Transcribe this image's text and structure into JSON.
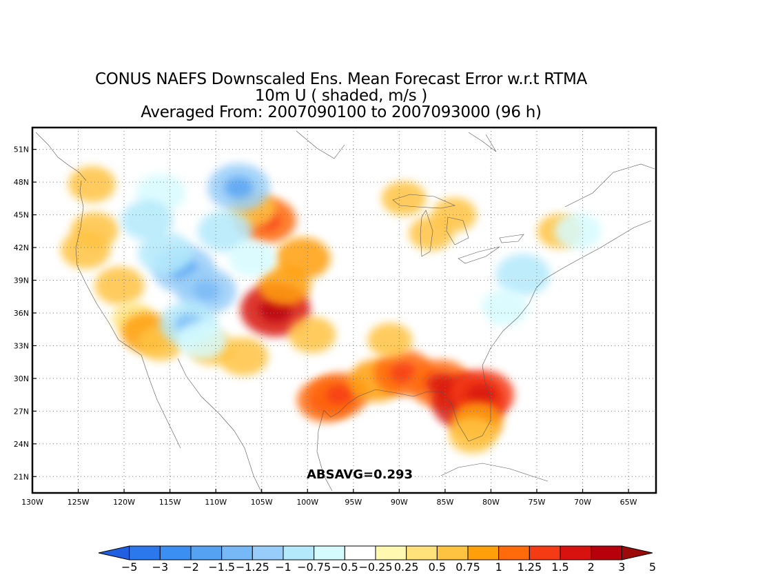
{
  "title": {
    "line1": "CONUS NAEFS Downscaled Ens. Mean Forecast Error w.r.t RTMA",
    "line2": "10m U ( shaded, m/s )",
    "line3": "Averaged From: 2007090100 to 2007093000 (96 h)"
  },
  "map": {
    "lon_range": [
      -130,
      -62
    ],
    "lat_range": [
      19.5,
      53
    ],
    "x_ticks": [
      "130W",
      "125W",
      "120W",
      "115W",
      "110W",
      "105W",
      "100W",
      "95W",
      "90W",
      "85W",
      "80W",
      "75W",
      "70W",
      "65W"
    ],
    "x_tick_lons": [
      -130,
      -125,
      -120,
      -115,
      -110,
      -105,
      -100,
      -95,
      -90,
      -85,
      -80,
      -75,
      -70,
      -65
    ],
    "y_ticks": [
      "51N",
      "48N",
      "45N",
      "42N",
      "39N",
      "36N",
      "33N",
      "30N",
      "27N",
      "24N",
      "21N"
    ],
    "y_tick_lats": [
      51,
      48,
      45,
      42,
      39,
      36,
      33,
      30,
      27,
      24,
      21
    ],
    "grid": true,
    "stat_label": "ABSAVG=0.293"
  },
  "colorbar": {
    "labels": [
      "-5",
      "-3",
      "-2",
      "-1.5",
      "-1.25",
      "-1",
      "-0.75",
      "-0.5",
      "-0.25",
      "0.25",
      "0.5",
      "0.75",
      "1",
      "1.25",
      "1.5",
      "2",
      "3",
      "5"
    ],
    "colors": [
      "#1f5fe0",
      "#2a78ec",
      "#3c8ff2",
      "#55a2f2",
      "#77b8f6",
      "#97cdf8",
      "#b3e9fb",
      "#d6fbff",
      "#ffffff",
      "#fff8b0",
      "#ffe27a",
      "#ffc342",
      "#ff9f0a",
      "#ff6b0a",
      "#f53b13",
      "#d8120f",
      "#b8000c",
      "#9c0a0a"
    ]
  },
  "error_blobs": [
    {
      "lon": -123.5,
      "lat": 47.8,
      "v": 0.6,
      "name": "wa-coast"
    },
    {
      "lon": -123.2,
      "lat": 43.6,
      "v": 0.6,
      "name": "or-coast"
    },
    {
      "lon": -124.2,
      "lat": 41.8,
      "v": 0.7,
      "name": "nw-ca-coast"
    },
    {
      "lon": -120.5,
      "lat": 38.5,
      "v": 0.7,
      "name": "sierra"
    },
    {
      "lon": -119,
      "lat": 35.5,
      "v": 0.4,
      "name": "central-valley"
    },
    {
      "lon": -117.5,
      "lat": 34.2,
      "v": 0.8,
      "name": "socal"
    },
    {
      "lon": -116,
      "lat": 33.2,
      "v": 0.5,
      "name": "socal-2"
    },
    {
      "lon": -107,
      "lat": 32,
      "v": 0.7,
      "name": "nm-south"
    },
    {
      "lon": -110.5,
      "lat": 32.8,
      "v": 0.5,
      "name": "az-south"
    },
    {
      "lon": -104.5,
      "lat": 44.5,
      "v": 1.1,
      "name": "sd-west"
    },
    {
      "lon": -106,
      "lat": 45.5,
      "v": 0.6,
      "name": "mt-east"
    },
    {
      "lon": -103.5,
      "lat": 36.3,
      "v": 1.5,
      "name": "ne-nm"
    },
    {
      "lon": -102.5,
      "lat": 38.5,
      "v": 0.8,
      "name": "co-east"
    },
    {
      "lon": -100.5,
      "lat": 41,
      "v": 0.9,
      "name": "ne"
    },
    {
      "lon": -99.5,
      "lat": 34,
      "v": 0.6,
      "name": "tx-north"
    },
    {
      "lon": -98,
      "lat": 28,
      "v": 1.0,
      "name": "tx-south"
    },
    {
      "lon": -96.5,
      "lat": 28.5,
      "v": 1.0,
      "name": "tx-coast"
    },
    {
      "lon": -92.5,
      "lat": 29.8,
      "v": 0.9,
      "name": "la"
    },
    {
      "lon": -89.5,
      "lat": 30.5,
      "v": 1.1,
      "name": "ms"
    },
    {
      "lon": -85.5,
      "lat": 29.5,
      "v": 1.2,
      "name": "fl-pan"
    },
    {
      "lon": -82.5,
      "lat": 27.8,
      "v": 1.6,
      "name": "fl-west"
    },
    {
      "lon": -81,
      "lat": 28.5,
      "v": 1.3,
      "name": "fl-east"
    },
    {
      "lon": -81.5,
      "lat": 26,
      "v": 0.8,
      "name": "fl-south"
    },
    {
      "lon": -82,
      "lat": 24.8,
      "v": 0.6,
      "name": "fl-keys"
    },
    {
      "lon": -86.5,
      "lat": 43.3,
      "v": 0.5,
      "name": "lake-mi"
    },
    {
      "lon": -84,
      "lat": 45,
      "v": 0.5,
      "name": "mi-north"
    },
    {
      "lon": -89.5,
      "lat": 46.5,
      "v": 0.5,
      "name": "wi-north"
    },
    {
      "lon": -91,
      "lat": 33.5,
      "v": 0.5,
      "name": "ar-ms"
    },
    {
      "lon": -72.5,
      "lat": 43.5,
      "v": 0.5,
      "name": "vt-nh"
    },
    {
      "lon": -116,
      "lat": 47,
      "v": -0.7,
      "name": "idaho-north"
    },
    {
      "lon": -113.5,
      "lat": 40,
      "v": -1.2,
      "name": "nv-ut"
    },
    {
      "lon": -117.5,
      "lat": 44.5,
      "v": -0.8,
      "name": "or-east"
    },
    {
      "lon": -115.5,
      "lat": 41.5,
      "v": -0.9,
      "name": "nv-north"
    },
    {
      "lon": -111,
      "lat": 38,
      "v": -1.1,
      "name": "ut-south"
    },
    {
      "lon": -113,
      "lat": 35,
      "v": -1.0,
      "name": "az-north"
    },
    {
      "lon": -107.5,
      "lat": 47.5,
      "v": -1.2,
      "name": "mt-north"
    },
    {
      "lon": -109,
      "lat": 43.5,
      "v": -0.9,
      "name": "wy"
    },
    {
      "lon": -106,
      "lat": 41,
      "v": -0.6,
      "name": "co-north"
    },
    {
      "lon": -111.5,
      "lat": 33.5,
      "v": -0.7,
      "name": "az-central"
    },
    {
      "lon": -76.5,
      "lat": 39.5,
      "v": -0.9,
      "name": "mid-atlantic"
    },
    {
      "lon": -78.5,
      "lat": 36.5,
      "v": -0.6,
      "name": "va-nc"
    },
    {
      "lon": -83,
      "lat": 35,
      "v": -0.5,
      "name": "tn-nc"
    },
    {
      "lon": -86,
      "lat": 36.5,
      "v": -0.4,
      "name": "tn"
    },
    {
      "lon": -70.5,
      "lat": 43.5,
      "v": -0.6,
      "name": "new-england"
    },
    {
      "lon": -89,
      "lat": 39,
      "v": -0.3,
      "name": "il"
    },
    {
      "lon": -93,
      "lat": 37.5,
      "v": -0.3,
      "name": "mo"
    }
  ]
}
